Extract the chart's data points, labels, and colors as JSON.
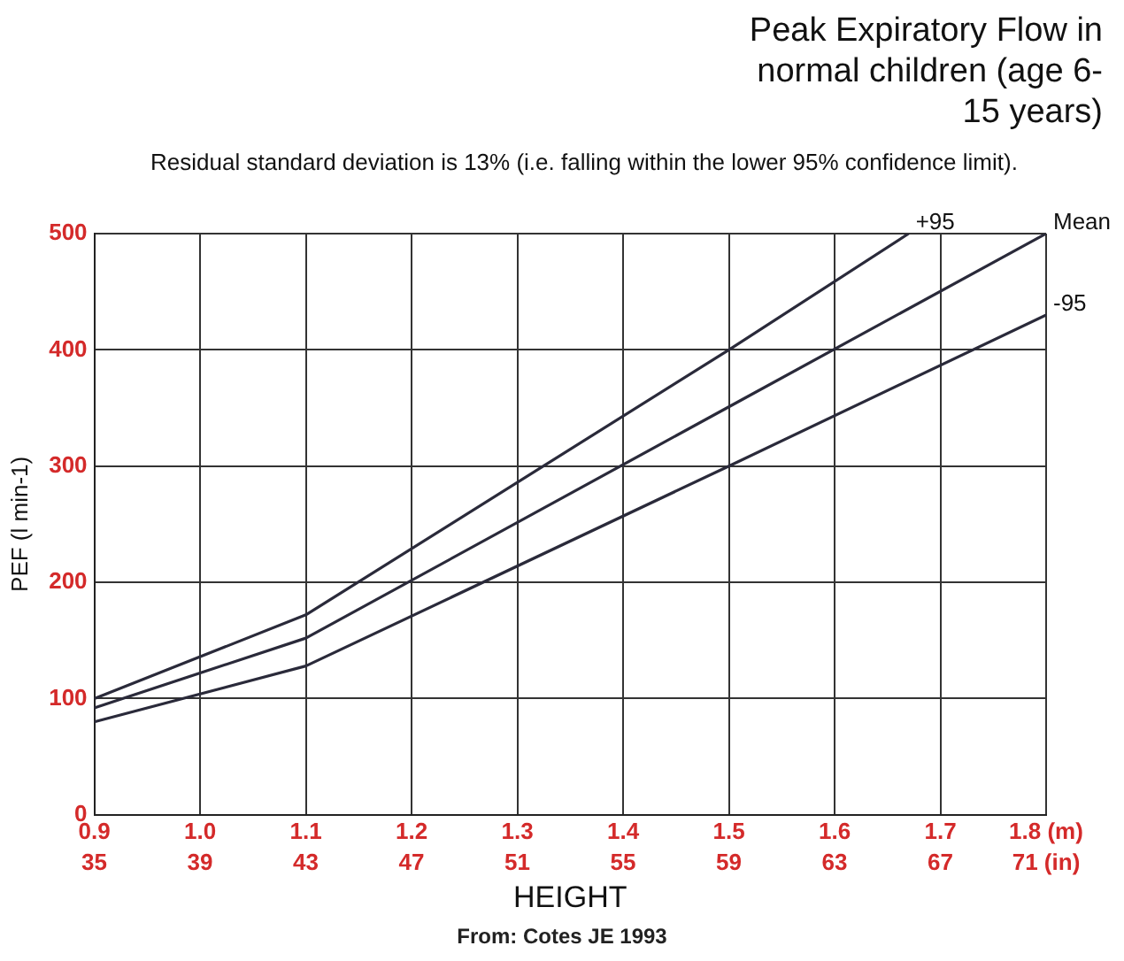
{
  "chart_data": {
    "type": "line",
    "title": "Peak Expiratory Flow in normal children (age 6-15 years)",
    "subtitle": "Residual standard deviation is 13% (i.e. falling within the lower 95% confidence limit).",
    "xlabel": "HEIGHT",
    "ylabel": "PEF (l min-1)",
    "annotations": [
      "From: Cotes JE 1993"
    ],
    "series": [
      {
        "name": "+95",
        "color": "#2a2a3a",
        "x": [
          0.9,
          1.1,
          1.5,
          1.67
        ],
        "values": [
          100,
          172,
          400,
          500
        ]
      },
      {
        "name": "Mean",
        "color": "#2a2a3a",
        "x": [
          0.9,
          1.1,
          1.5,
          1.8
        ],
        "values": [
          92,
          152,
          351,
          500
        ]
      },
      {
        "name": "-95",
        "color": "#2a2a3a",
        "x": [
          0.9,
          1.1,
          1.5,
          1.8
        ],
        "values": [
          80,
          128,
          300,
          430
        ]
      }
    ],
    "xlim": [
      0.9,
      1.8
    ],
    "xticks": [
      0.9,
      {
        "value": 1,
        "label": "1.0"
      },
      1.1,
      1.2,
      1.3,
      1.4,
      1.5,
      1.6,
      1.7,
      {
        "value": 1.8,
        "label": "1.8 (m)"
      }
    ],
    "x2lim": [
      35,
      71
    ],
    "x2ticks": [
      35,
      39,
      43,
      47,
      51,
      55,
      59,
      63,
      67,
      {
        "value": 71,
        "label": "71 (in)"
      }
    ],
    "ylim": [
      0,
      500
    ],
    "yticks": [
      0,
      100,
      200,
      300,
      400,
      500
    ],
    "grid": true,
    "legend": false,
    "marker": "none",
    "line_style": "solid"
  }
}
